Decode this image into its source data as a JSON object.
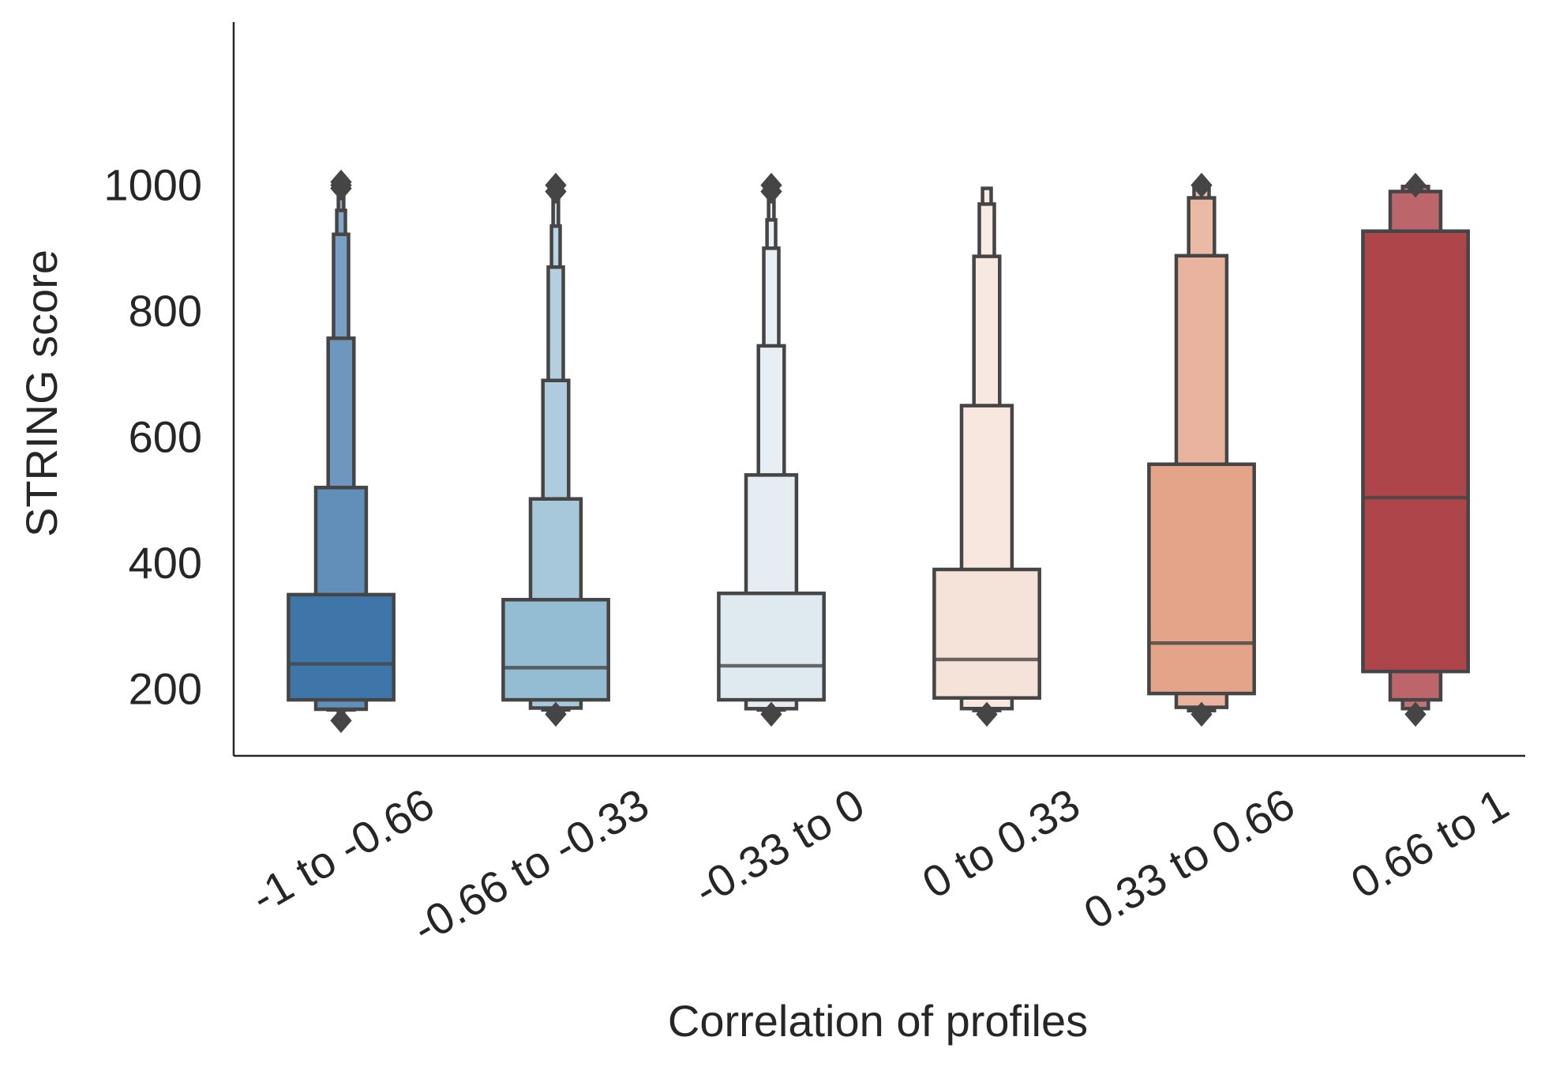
{
  "chart_data": {
    "type": "boxenplot",
    "xlabel": "Correlation of profiles",
    "ylabel": "STRING score",
    "ylim": [
      110,
      1040
    ],
    "yticks": [
      200,
      400,
      600,
      800,
      1000
    ],
    "grid": false,
    "legend": "none",
    "categories": [
      "-1 to -0.66",
      "-0.66 to -0.33",
      "-0.33 to 0",
      "0 to 0.33",
      "0.33 to 0.66",
      "0.66 to 1"
    ],
    "series": [
      {
        "category": "-1 to -0.66",
        "color": "#3f76aa",
        "median": 240,
        "boxes": [
          [
            183,
            350
          ],
          [
            168,
            520
          ],
          [
            167,
            757
          ],
          [
            167,
            922
          ],
          [
            167,
            960
          ],
          [
            165,
            985
          ]
        ],
        "outliers": [
          150,
          995,
          1000,
          1005
        ]
      },
      {
        "category": "-0.66 to -0.33",
        "color": "#94bcd3",
        "median": 234,
        "boxes": [
          [
            183,
            342
          ],
          [
            170,
            502
          ],
          [
            167,
            690
          ],
          [
            165,
            870
          ],
          [
            164,
            935
          ],
          [
            162,
            985
          ]
        ],
        "outliers": [
          160,
          990,
          1000
        ]
      },
      {
        "category": "-0.33 to 0",
        "color": "#dfe9f0",
        "median": 237,
        "boxes": [
          [
            183,
            352
          ],
          [
            169,
            540
          ],
          [
            167,
            745
          ],
          [
            165,
            900
          ],
          [
            164,
            945
          ],
          [
            162,
            985
          ]
        ],
        "outliers": [
          160,
          990,
          1000
        ]
      },
      {
        "category": "0 to 0.33",
        "color": "#f5e2d8",
        "median": 247,
        "boxes": [
          [
            186,
            390
          ],
          [
            169,
            650
          ],
          [
            166,
            887
          ],
          [
            165,
            970
          ],
          [
            164,
            995
          ]
        ],
        "outliers": [
          160
        ]
      },
      {
        "category": "0.33 to 0.66",
        "color": "#e3a48a",
        "median": 273,
        "boxes": [
          [
            193,
            557
          ],
          [
            171,
            888
          ],
          [
            166,
            980
          ],
          [
            165,
            997
          ]
        ],
        "outliers": [
          160,
          1000
        ]
      },
      {
        "category": "0.66 to 1",
        "color": "#ad454a",
        "median": 504,
        "boxes": [
          [
            228,
            927
          ],
          [
            183,
            990
          ],
          [
            169,
            998
          ]
        ],
        "outliers": [
          160,
          1000
        ]
      }
    ]
  }
}
